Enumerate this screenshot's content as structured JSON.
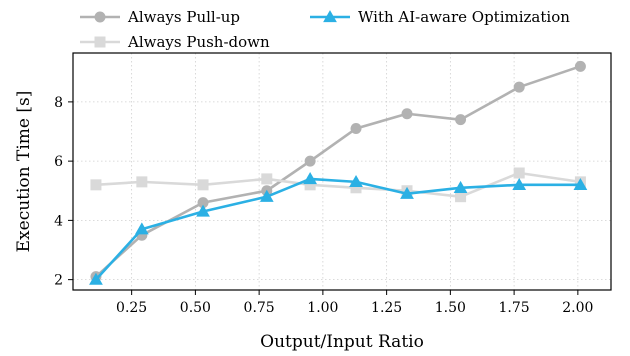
{
  "chart_data": {
    "type": "line",
    "xlabel": "Output/Input Ratio",
    "ylabel": "Execution Time [s]",
    "xlim": [
      0.02,
      2.13
    ],
    "ylim": [
      1.65,
      9.65
    ],
    "xticks": [
      0.25,
      0.5,
      0.75,
      1.0,
      1.25,
      1.5,
      1.75,
      2.0
    ],
    "xtick_labels": [
      "0.25",
      "0.50",
      "0.75",
      "1.00",
      "1.25",
      "1.50",
      "1.75",
      "2.00"
    ],
    "yticks": [
      2,
      4,
      6,
      8
    ],
    "ytick_labels": [
      "2",
      "4",
      "6",
      "8"
    ],
    "grid": true,
    "legend_position": "top",
    "series": [
      {
        "name": "Always Pull-up",
        "marker": "circle",
        "color": "#b2b2b2",
        "x": [
          0.11,
          0.29,
          0.53,
          0.78,
          0.95,
          1.13,
          1.33,
          1.54,
          1.77,
          2.01
        ],
        "y": [
          2.1,
          3.5,
          4.6,
          5.0,
          6.0,
          7.1,
          7.6,
          7.4,
          8.5,
          9.2
        ]
      },
      {
        "name": "Always Push-down",
        "marker": "square",
        "color": "#d9d9d9",
        "x": [
          0.11,
          0.29,
          0.53,
          0.78,
          0.95,
          1.13,
          1.33,
          1.54,
          1.77,
          2.01
        ],
        "y": [
          5.2,
          5.3,
          5.2,
          5.4,
          5.2,
          5.1,
          5.0,
          4.8,
          5.6,
          5.3
        ]
      },
      {
        "name": "With AI-aware Optimization",
        "marker": "triangle",
        "color": "#2bb0e4",
        "x": [
          0.11,
          0.29,
          0.53,
          0.78,
          0.95,
          1.13,
          1.33,
          1.54,
          1.77,
          2.01
        ],
        "y": [
          2.0,
          3.7,
          4.3,
          4.8,
          5.4,
          5.3,
          4.9,
          5.1,
          5.2,
          5.2
        ]
      }
    ]
  }
}
